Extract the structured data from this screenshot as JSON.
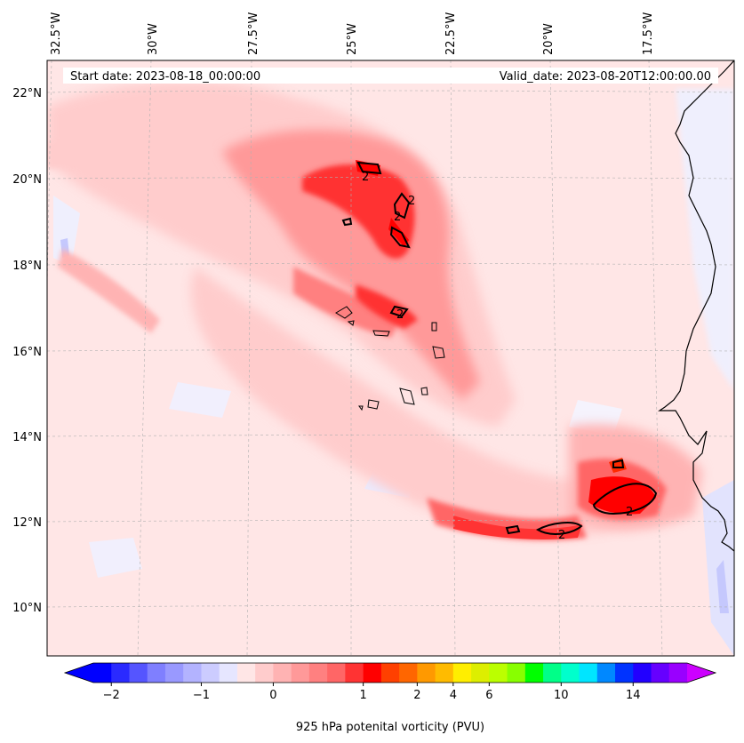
{
  "header": {
    "start_date": "Start date: 2023-08-18_00:00:00",
    "valid_date": "Valid_date: 2023-08-20T12:00:00.00"
  },
  "longitude_labels": [
    "32.5°W",
    "30°W",
    "27.5°W",
    "25°W",
    "22.5°W",
    "20°W",
    "17.5°W"
  ],
  "latitude_labels": [
    "22°N",
    "20°N",
    "18°N",
    "16°N",
    "14°N",
    "12°N",
    "10°N"
  ],
  "contour_label": "2",
  "colorbar": {
    "title": "925 hPa potenital vorticity (PVU)",
    "tick_labels": [
      "−2",
      "−1",
      "0",
      "1",
      "2",
      "4",
      "6",
      "10",
      "14"
    ],
    "tick_values": [
      -2,
      -1,
      0,
      1,
      2,
      4,
      6,
      10,
      14
    ],
    "colors": [
      "#0000ff",
      "#2a2aff",
      "#5555ff",
      "#7f7fff",
      "#9999ff",
      "#b3b3ff",
      "#ccccff",
      "#e6e6ff",
      "#ffe6e6",
      "#ffcccc",
      "#ffb3b3",
      "#ff9999",
      "#ff8080",
      "#ff6666",
      "#ff3333",
      "#ff0000",
      "#ff4000",
      "#ff6600",
      "#ff9900",
      "#ffbb00",
      "#ffee00",
      "#ddee00",
      "#bbff00",
      "#88ff00",
      "#00ff00",
      "#00ff88",
      "#00ffcc",
      "#00e5ff",
      "#0088ff",
      "#0033ff",
      "#2200ff",
      "#6600ff",
      "#9900ff"
    ],
    "under_color": "#0000ff",
    "over_color": "#cc00ff"
  },
  "colors": {
    "background_field": "#ffe6e6",
    "coast": "#000000",
    "gridline": "#b0b0b0"
  }
}
